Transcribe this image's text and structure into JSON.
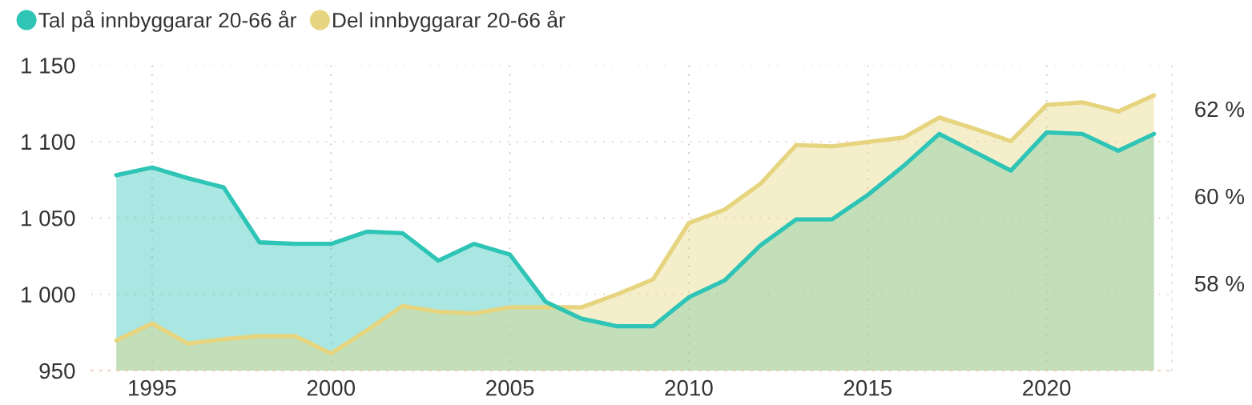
{
  "chart_data": {
    "type": "area",
    "x": [
      1994,
      1995,
      1996,
      1997,
      1998,
      1999,
      2000,
      2001,
      2002,
      2003,
      2004,
      2005,
      2006,
      2007,
      2008,
      2009,
      2010,
      2011,
      2012,
      2013,
      2014,
      2015,
      2016,
      2017,
      2018,
      2019,
      2020,
      2021,
      2022,
      2023
    ],
    "series": [
      {
        "name": "Tal på innbyggarar 20-66 år",
        "color": "#2ec4b6",
        "values": [
          1078,
          1083,
          1076,
          1070,
          1034,
          1033,
          1033,
          1041,
          1040,
          1022,
          1033,
          1026,
          995,
          984,
          979,
          979,
          998,
          1009,
          1032,
          1049,
          1049,
          1065,
          1084,
          1105,
          1093,
          1081,
          1106,
          1105,
          1094,
          1105
        ]
      },
      {
        "name": "Del innbyggarar 20-66 år",
        "color": "#e6d47e",
        "axis": "y2",
        "values": [
          56.69,
          57.08,
          56.62,
          56.72,
          56.79,
          56.79,
          56.39,
          56.92,
          57.48,
          57.35,
          57.31,
          57.45,
          57.45,
          57.45,
          57.75,
          58.09,
          59.38,
          59.69,
          60.28,
          61.17,
          61.14,
          61.24,
          61.34,
          61.8,
          61.54,
          61.26,
          62.09,
          62.15,
          61.94,
          62.31
        ]
      }
    ],
    "xlim": [
      1993.3,
      2023.5
    ],
    "xticks": [
      1995,
      2000,
      2005,
      2010,
      2015,
      2020
    ],
    "ylim": [
      950,
      1150
    ],
    "yticks": [
      950,
      {
        "value": 1000,
        "label": "1 000"
      },
      {
        "value": 1050,
        "label": "1 050"
      },
      {
        "value": 1100,
        "label": "1 100"
      },
      {
        "value": 1150,
        "label": "1 150"
      }
    ],
    "y2lim": [
      56,
      63
    ],
    "y2ticks": [
      {
        "value": 58,
        "label": "58 %"
      },
      {
        "value": 60,
        "label": "60 %"
      },
      {
        "value": 62,
        "label": "62 %"
      }
    ],
    "grid": true,
    "legend": "top left"
  }
}
